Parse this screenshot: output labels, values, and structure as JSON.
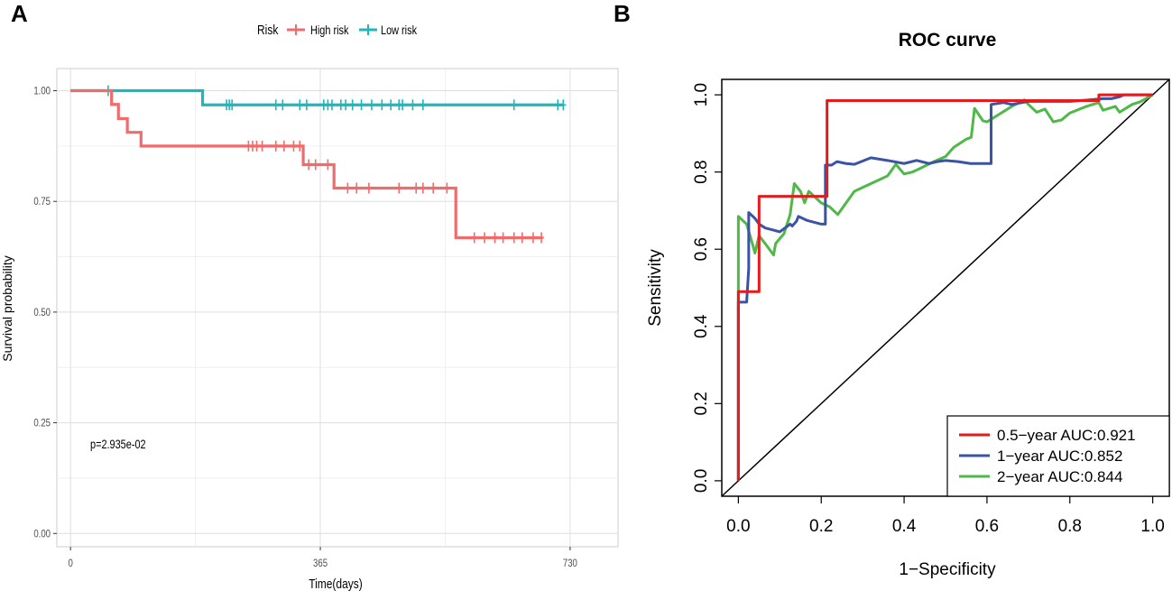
{
  "panels": {
    "a": "A",
    "b": "B"
  },
  "chart_data": [
    {
      "type": "line",
      "subtype": "kaplan-meier",
      "title": "",
      "xlabel": "Time(days)",
      "ylabel": "Survival probability",
      "xlim": [
        -20,
        800
      ],
      "ylim": [
        -0.03,
        1.05
      ],
      "xticks": [
        0,
        365,
        730
      ],
      "xtick_labels": [
        "0",
        "365",
        "730"
      ],
      "yticks": [
        0,
        0.25,
        0.5,
        0.75,
        1.0
      ],
      "ytick_labels": [
        "0.00",
        "0.25",
        "0.50",
        "0.75",
        "1.00"
      ],
      "grid": true,
      "legend": {
        "title": "Risk",
        "position": "top",
        "entries": [
          "High risk",
          "Low risk"
        ]
      },
      "annotation": "p=2.935e-02",
      "series": [
        {
          "name": "Low risk",
          "color": "#1fb6bd",
          "steps": [
            [
              0,
              1.0
            ],
            [
              193,
              1.0
            ],
            [
              193,
              0.968
            ],
            [
              720,
              0.968
            ]
          ],
          "censored": [
            [
              55,
              1.0
            ],
            [
              228,
              0.968
            ],
            [
              232,
              0.968
            ],
            [
              236,
              0.968
            ],
            [
              300,
              0.968
            ],
            [
              310,
              0.968
            ],
            [
              335,
              0.968
            ],
            [
              345,
              0.968
            ],
            [
              370,
              0.968
            ],
            [
              376,
              0.968
            ],
            [
              382,
              0.968
            ],
            [
              395,
              0.968
            ],
            [
              402,
              0.968
            ],
            [
              412,
              0.968
            ],
            [
              425,
              0.968
            ],
            [
              440,
              0.968
            ],
            [
              455,
              0.968
            ],
            [
              468,
              0.968
            ],
            [
              480,
              0.968
            ],
            [
              485,
              0.968
            ],
            [
              500,
              0.968
            ],
            [
              515,
              0.968
            ],
            [
              648,
              0.968
            ],
            [
              712,
              0.968
            ],
            [
              720,
              0.968
            ]
          ]
        },
        {
          "name": "High risk",
          "color": "#f06b6b",
          "steps": [
            [
              0,
              1.0
            ],
            [
              60,
              1.0
            ],
            [
              60,
              0.969
            ],
            [
              70,
              0.969
            ],
            [
              70,
              0.937
            ],
            [
              83,
              0.937
            ],
            [
              83,
              0.906
            ],
            [
              103,
              0.906
            ],
            [
              103,
              0.875
            ],
            [
              340,
              0.875
            ],
            [
              340,
              0.833
            ],
            [
              385,
              0.833
            ],
            [
              385,
              0.78
            ],
            [
              563,
              0.78
            ],
            [
              563,
              0.668
            ],
            [
              690,
              0.668
            ]
          ],
          "censored": [
            [
              260,
              0.875
            ],
            [
              266,
              0.875
            ],
            [
              272,
              0.875
            ],
            [
              280,
              0.875
            ],
            [
              300,
              0.875
            ],
            [
              312,
              0.875
            ],
            [
              326,
              0.875
            ],
            [
              335,
              0.875
            ],
            [
              348,
              0.833
            ],
            [
              358,
              0.833
            ],
            [
              376,
              0.833
            ],
            [
              405,
              0.78
            ],
            [
              418,
              0.78
            ],
            [
              436,
              0.78
            ],
            [
              480,
              0.78
            ],
            [
              505,
              0.78
            ],
            [
              515,
              0.78
            ],
            [
              530,
              0.78
            ],
            [
              550,
              0.78
            ],
            [
              590,
              0.668
            ],
            [
              605,
              0.668
            ],
            [
              620,
              0.668
            ],
            [
              632,
              0.668
            ],
            [
              648,
              0.668
            ],
            [
              660,
              0.668
            ],
            [
              676,
              0.668
            ],
            [
              688,
              0.668
            ]
          ]
        }
      ]
    },
    {
      "type": "line",
      "subtype": "roc",
      "title": "ROC curve",
      "xlabel": "1−Specificity",
      "ylabel": "Sensitivity",
      "xlim": [
        -0.04,
        1.04
      ],
      "ylim": [
        -0.04,
        1.04
      ],
      "xticks": [
        0,
        0.2,
        0.4,
        0.6,
        0.8,
        1.0
      ],
      "xtick_labels": [
        "0.0",
        "0.2",
        "0.4",
        "0.6",
        "0.8",
        "1.0"
      ],
      "yticks": [
        0,
        0.2,
        0.4,
        0.6,
        0.8,
        1.0
      ],
      "ytick_labels": [
        "0.0",
        "0.2",
        "0.4",
        "0.6",
        "0.8",
        "1.0"
      ],
      "grid": false,
      "diagonal": true,
      "legend": {
        "position": "bottom-right"
      },
      "series": [
        {
          "name": "0.5-year AUC:0.921",
          "label": "0.5−year AUC:0.921",
          "color": "#e41a1c",
          "points": [
            [
              0,
              0
            ],
            [
              0,
              0.49
            ],
            [
              0.05,
              0.49
            ],
            [
              0.05,
              0.737
            ],
            [
              0.214,
              0.737
            ],
            [
              0.214,
              0.985
            ],
            [
              0.87,
              0.985
            ],
            [
              0.87,
              1.0
            ],
            [
              1.0,
              1.0
            ]
          ]
        },
        {
          "name": "1-year AUC:0.852",
          "label": "1−year AUC:0.852",
          "color": "#3a53a4",
          "points": [
            [
              0,
              0
            ],
            [
              0,
              0.463
            ],
            [
              0.02,
              0.463
            ],
            [
              0.025,
              0.55
            ],
            [
              0.025,
              0.695
            ],
            [
              0.04,
              0.68
            ],
            [
              0.05,
              0.665
            ],
            [
              0.065,
              0.655
            ],
            [
              0.09,
              0.648
            ],
            [
              0.1,
              0.645
            ],
            [
              0.125,
              0.665
            ],
            [
              0.13,
              0.66
            ],
            [
              0.14,
              0.672
            ],
            [
              0.145,
              0.685
            ],
            [
              0.165,
              0.675
            ],
            [
              0.2,
              0.665
            ],
            [
              0.21,
              0.665
            ],
            [
              0.21,
              0.818
            ],
            [
              0.225,
              0.818
            ],
            [
              0.238,
              0.827
            ],
            [
              0.26,
              0.822
            ],
            [
              0.28,
              0.82
            ],
            [
              0.32,
              0.837
            ],
            [
              0.36,
              0.83
            ],
            [
              0.4,
              0.822
            ],
            [
              0.43,
              0.83
            ],
            [
              0.46,
              0.822
            ],
            [
              0.48,
              0.827
            ],
            [
              0.5,
              0.83
            ],
            [
              0.53,
              0.827
            ],
            [
              0.56,
              0.822
            ],
            [
              0.6,
              0.822
            ],
            [
              0.61,
              0.822
            ],
            [
              0.61,
              0.975
            ],
            [
              0.64,
              0.98
            ],
            [
              0.66,
              0.975
            ],
            [
              0.7,
              0.983
            ],
            [
              0.75,
              0.983
            ],
            [
              0.8,
              0.983
            ],
            [
              0.85,
              0.987
            ],
            [
              0.88,
              0.99
            ],
            [
              0.9,
              0.99
            ],
            [
              0.92,
              0.995
            ],
            [
              0.93,
              1.0
            ],
            [
              0.97,
              1.0
            ],
            [
              1.0,
              1.0
            ]
          ]
        },
        {
          "name": "2-year AUC:0.844",
          "label": "2−year AUC:0.844",
          "color": "#4fb848",
          "points": [
            [
              0,
              0
            ],
            [
              0,
              0.685
            ],
            [
              0.02,
              0.665
            ],
            [
              0.035,
              0.61
            ],
            [
              0.04,
              0.59
            ],
            [
              0.05,
              0.635
            ],
            [
              0.07,
              0.607
            ],
            [
              0.085,
              0.585
            ],
            [
              0.09,
              0.615
            ],
            [
              0.11,
              0.64
            ],
            [
              0.125,
              0.69
            ],
            [
              0.135,
              0.77
            ],
            [
              0.15,
              0.75
            ],
            [
              0.16,
              0.72
            ],
            [
              0.17,
              0.75
            ],
            [
              0.185,
              0.735
            ],
            [
              0.2,
              0.72
            ],
            [
              0.22,
              0.71
            ],
            [
              0.24,
              0.69
            ],
            [
              0.26,
              0.72
            ],
            [
              0.28,
              0.75
            ],
            [
              0.3,
              0.76
            ],
            [
              0.34,
              0.78
            ],
            [
              0.36,
              0.79
            ],
            [
              0.38,
              0.82
            ],
            [
              0.4,
              0.795
            ],
            [
              0.42,
              0.8
            ],
            [
              0.44,
              0.81
            ],
            [
              0.47,
              0.826
            ],
            [
              0.5,
              0.84
            ],
            [
              0.52,
              0.864
            ],
            [
              0.55,
              0.885
            ],
            [
              0.562,
              0.89
            ],
            [
              0.57,
              0.965
            ],
            [
              0.59,
              0.933
            ],
            [
              0.6,
              0.93
            ],
            [
              0.63,
              0.95
            ],
            [
              0.66,
              0.97
            ],
            [
              0.69,
              0.987
            ],
            [
              0.7,
              0.975
            ],
            [
              0.72,
              0.955
            ],
            [
              0.74,
              0.963
            ],
            [
              0.76,
              0.93
            ],
            [
              0.78,
              0.935
            ],
            [
              0.8,
              0.953
            ],
            [
              0.84,
              0.97
            ],
            [
              0.87,
              0.98
            ],
            [
              0.88,
              0.96
            ],
            [
              0.91,
              0.97
            ],
            [
              0.92,
              0.955
            ],
            [
              0.95,
              0.975
            ],
            [
              0.97,
              0.982
            ],
            [
              1.0,
              1.0
            ]
          ]
        }
      ]
    }
  ]
}
